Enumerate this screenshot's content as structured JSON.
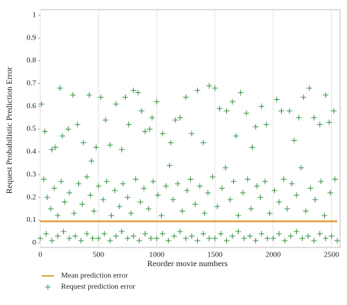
{
  "chart_data": {
    "type": "scatter",
    "xlabel": "Reorder movie numbers",
    "ylabel": "Request Probabilistic Prediction Error",
    "xlim": [
      0,
      2550
    ],
    "ylim": [
      -0.02,
      1
    ],
    "xticks": [
      0,
      500,
      1000,
      1500,
      2000,
      2500
    ],
    "yticks": [
      0,
      0.1,
      0.2,
      0.3,
      0.4,
      0.5,
      0.6,
      0.7,
      0.8,
      0.9,
      1
    ],
    "grid": true,
    "legend": "bottom-left",
    "series": [
      {
        "name": "Mean prediction error",
        "style": "line",
        "color": "#e39b3a",
        "x": [
          0,
          2550
        ],
        "values": [
          0.095,
          0.095
        ]
      },
      {
        "name": "Request prediction error",
        "style": "plus",
        "color": "#2f8f3a",
        "x": [
          10,
          40,
          100,
          130,
          170,
          190,
          240,
          280,
          320,
          370,
          420,
          440,
          480,
          520,
          560,
          600,
          650,
          700,
          730,
          760,
          800,
          840,
          870,
          900,
          940,
          960,
          1000,
          1050,
          1120,
          1160,
          1200,
          1250,
          1300,
          1350,
          1400,
          1450,
          1500,
          1540,
          1600,
          1650,
          1680,
          1720,
          1770,
          1820,
          1850,
          1900,
          1940,
          2030,
          2070,
          2140,
          2180,
          2220,
          2260,
          2310,
          2350,
          2400,
          2450,
          2480,
          2520,
          30,
          60,
          90,
          120,
          150,
          180,
          210,
          250,
          290,
          330,
          360,
          400,
          430,
          460,
          500,
          540,
          570,
          610,
          640,
          680,
          710,
          750,
          780,
          820,
          860,
          890,
          930,
          970,
          1010,
          1040,
          1080,
          1110,
          1140,
          1180,
          1220,
          1260,
          1290,
          1330,
          1370,
          1410,
          1440,
          1480,
          1520,
          1560,
          1590,
          1630,
          1660,
          1700,
          1740,
          1780,
          1810,
          1860,
          1890,
          1930,
          1970,
          2010,
          2050,
          2090,
          2120,
          2160,
          2200,
          2240,
          2280,
          2320,
          2360,
          2410,
          2440,
          2490,
          2530,
          0,
          50,
          100,
          150,
          200,
          250,
          300,
          350,
          400,
          450,
          500,
          550,
          600,
          650,
          700,
          750,
          800,
          850,
          900,
          950,
          1000,
          1050,
          1100,
          1150,
          1200,
          1250,
          1300,
          1350,
          1400,
          1450,
          1500,
          1550,
          1600,
          1650,
          1700,
          1750,
          1800,
          1850,
          1900,
          1950,
          2000,
          2050,
          2100,
          2150,
          2200,
          2250,
          2300,
          2350,
          2400,
          2450,
          2500,
          2550
        ],
        "values": [
          0.61,
          0.49,
          0.41,
          0.42,
          0.68,
          0.47,
          0.5,
          0.65,
          0.52,
          0.44,
          0.65,
          0.36,
          0.42,
          0.64,
          0.54,
          0.43,
          0.61,
          0.41,
          0.64,
          0.52,
          0.67,
          0.66,
          0.58,
          0.49,
          0.5,
          0.55,
          0.62,
          0.48,
          0.44,
          0.54,
          0.55,
          0.64,
          0.48,
          0.67,
          0.44,
          0.69,
          0.68,
          0.59,
          0.58,
          0.62,
          0.47,
          0.66,
          0.57,
          0.42,
          0.51,
          0.6,
          0.52,
          0.63,
          0.58,
          0.58,
          0.45,
          0.55,
          0.64,
          0.68,
          0.55,
          0.52,
          0.65,
          0.53,
          0.58,
          0.28,
          0.2,
          0.15,
          0.24,
          0.12,
          0.27,
          0.18,
          0.22,
          0.13,
          0.26,
          0.17,
          0.29,
          0.21,
          0.14,
          0.25,
          0.19,
          0.27,
          0.12,
          0.23,
          0.16,
          0.26,
          0.2,
          0.13,
          0.28,
          0.18,
          0.24,
          0.15,
          0.27,
          0.21,
          0.12,
          0.25,
          0.34,
          0.19,
          0.26,
          0.14,
          0.23,
          0.28,
          0.17,
          0.25,
          0.13,
          0.22,
          0.29,
          0.16,
          0.24,
          0.33,
          0.19,
          0.27,
          0.12,
          0.22,
          0.28,
          0.15,
          0.25,
          0.2,
          0.27,
          0.13,
          0.23,
          0.18,
          0.28,
          0.15,
          0.26,
          0.21,
          0.33,
          0.14,
          0.24,
          0.19,
          0.27,
          0.12,
          0.22,
          0.28,
          0.02,
          0.04,
          0.01,
          0.03,
          0.05,
          0.02,
          0.03,
          0.01,
          0.04,
          0.02,
          0.02,
          0.04,
          0.01,
          0.03,
          0.05,
          0.02,
          0.03,
          0.01,
          0.04,
          0.02,
          0.02,
          0.04,
          0.01,
          0.03,
          0.05,
          0.02,
          0.03,
          0.01,
          0.04,
          0.02,
          0.02,
          0.04,
          0.01,
          0.03,
          0.05,
          0.02,
          0.03,
          0.01,
          0.04,
          0.02,
          0.02,
          0.04,
          0.01,
          0.03,
          0.05,
          0.02,
          0.03,
          0.01,
          0.04,
          0.02,
          0.03,
          0.01
        ]
      }
    ]
  }
}
